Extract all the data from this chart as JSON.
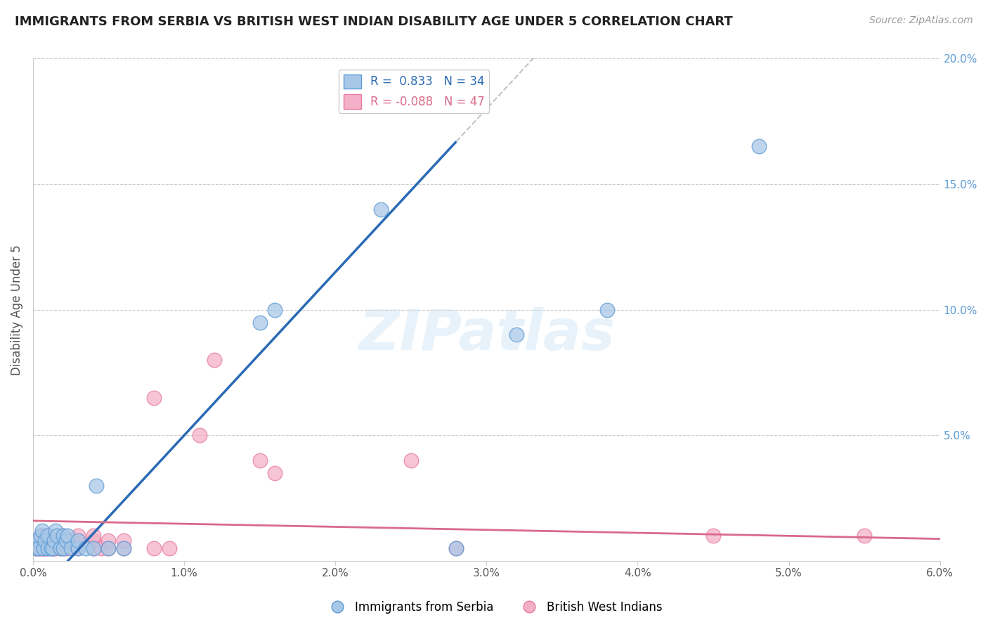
{
  "title": "IMMIGRANTS FROM SERBIA VS BRITISH WEST INDIAN DISABILITY AGE UNDER 5 CORRELATION CHART",
  "source": "Source: ZipAtlas.com",
  "ylabel": "Disability Age Under 5",
  "xlim": [
    0,
    0.06
  ],
  "ylim": [
    0,
    0.2
  ],
  "background_color": "#ffffff",
  "serbia_color": "#a8c8e8",
  "serbia_edge_color": "#5b9bd5",
  "bwi_color": "#f4b0c8",
  "bwi_edge_color": "#e87aa0",
  "serbia_line_color": "#2a6ab5",
  "bwi_line_color": "#d96a8a",
  "grid_color": "#cccccc",
  "watermark_text": "ZIPatlas",
  "serbia_R": 0.833,
  "serbia_N": 34,
  "bwi_R": -0.088,
  "bwi_N": 47,
  "serbia_points": [
    [
      0.0002,
      0.005
    ],
    [
      0.0003,
      0.008
    ],
    [
      0.0004,
      0.005
    ],
    [
      0.0005,
      0.01
    ],
    [
      0.0006,
      0.012
    ],
    [
      0.0007,
      0.005
    ],
    [
      0.0008,
      0.008
    ],
    [
      0.001,
      0.005
    ],
    [
      0.001,
      0.01
    ],
    [
      0.0012,
      0.005
    ],
    [
      0.0013,
      0.005
    ],
    [
      0.0014,
      0.008
    ],
    [
      0.0015,
      0.012
    ],
    [
      0.0016,
      0.01
    ],
    [
      0.0018,
      0.005
    ],
    [
      0.002,
      0.005
    ],
    [
      0.002,
      0.01
    ],
    [
      0.0022,
      0.008
    ],
    [
      0.0023,
      0.01
    ],
    [
      0.0025,
      0.005
    ],
    [
      0.003,
      0.005
    ],
    [
      0.003,
      0.008
    ],
    [
      0.0035,
      0.005
    ],
    [
      0.004,
      0.005
    ],
    [
      0.0042,
      0.03
    ],
    [
      0.005,
      0.005
    ],
    [
      0.006,
      0.005
    ],
    [
      0.015,
      0.095
    ],
    [
      0.016,
      0.1
    ],
    [
      0.023,
      0.14
    ],
    [
      0.028,
      0.005
    ],
    [
      0.032,
      0.09
    ],
    [
      0.038,
      0.1
    ],
    [
      0.048,
      0.165
    ]
  ],
  "bwi_points": [
    [
      0.0002,
      0.005
    ],
    [
      0.0003,
      0.005
    ],
    [
      0.0004,
      0.005
    ],
    [
      0.0005,
      0.005
    ],
    [
      0.0005,
      0.01
    ],
    [
      0.0006,
      0.005
    ],
    [
      0.0006,
      0.008
    ],
    [
      0.0007,
      0.005
    ],
    [
      0.0008,
      0.005
    ],
    [
      0.0008,
      0.01
    ],
    [
      0.0009,
      0.005
    ],
    [
      0.001,
      0.005
    ],
    [
      0.001,
      0.008
    ],
    [
      0.001,
      0.01
    ],
    [
      0.0012,
      0.005
    ],
    [
      0.0013,
      0.005
    ],
    [
      0.0014,
      0.005
    ],
    [
      0.0015,
      0.005
    ],
    [
      0.0016,
      0.008
    ],
    [
      0.0018,
      0.005
    ],
    [
      0.002,
      0.005
    ],
    [
      0.002,
      0.008
    ],
    [
      0.002,
      0.01
    ],
    [
      0.0022,
      0.005
    ],
    [
      0.0025,
      0.008
    ],
    [
      0.003,
      0.005
    ],
    [
      0.003,
      0.008
    ],
    [
      0.003,
      0.01
    ],
    [
      0.004,
      0.005
    ],
    [
      0.004,
      0.008
    ],
    [
      0.004,
      0.01
    ],
    [
      0.0045,
      0.005
    ],
    [
      0.005,
      0.005
    ],
    [
      0.005,
      0.008
    ],
    [
      0.006,
      0.005
    ],
    [
      0.006,
      0.008
    ],
    [
      0.008,
      0.005
    ],
    [
      0.008,
      0.065
    ],
    [
      0.009,
      0.005
    ],
    [
      0.011,
      0.05
    ],
    [
      0.012,
      0.08
    ],
    [
      0.015,
      0.04
    ],
    [
      0.016,
      0.035
    ],
    [
      0.025,
      0.04
    ],
    [
      0.028,
      0.005
    ],
    [
      0.045,
      0.01
    ],
    [
      0.055,
      0.01
    ]
  ]
}
